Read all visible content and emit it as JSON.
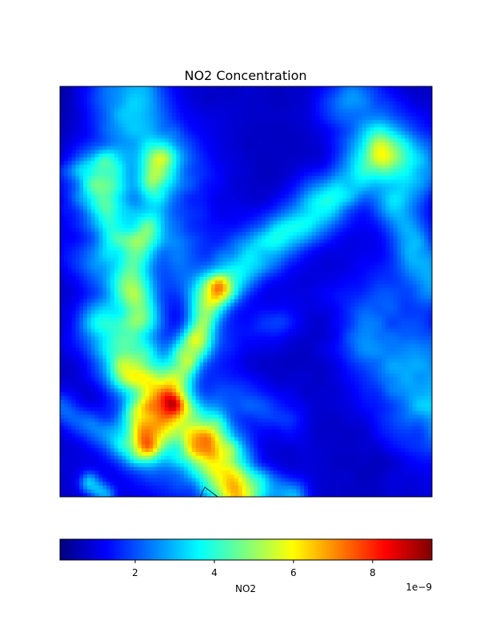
{
  "chart_data": {
    "type": "heatmap",
    "title": "NO2 Concentration",
    "colorbar": {
      "label": "NO2",
      "orientation": "horizontal",
      "placement": "bottom",
      "colormap": "jet",
      "range": [
        1e-10,
        9.5e-09
      ],
      "ticks": [
        2,
        4,
        6,
        8
      ],
      "tick_labels": [
        "2",
        "4",
        "6",
        "8"
      ],
      "offset_text": "1e−9"
    },
    "axes": {
      "xticks": [],
      "yticks": [],
      "grid": false
    },
    "grid_size": [
      96,
      110
    ],
    "colors": {
      "jet_stops": [
        "#00007f",
        "#0000ff",
        "#007fff",
        "#00ffff",
        "#7fff7f",
        "#ffff00",
        "#ff7f00",
        "#ff0000",
        "#7f0000"
      ]
    }
  }
}
